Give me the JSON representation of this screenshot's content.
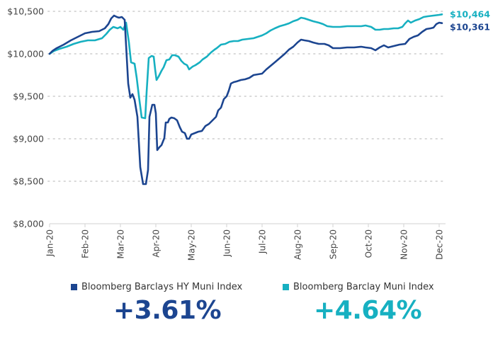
{
  "colors": {
    "hy": "#1c4590",
    "muni": "#17b0c1",
    "grid": "#d9d9d9",
    "axis": "#d9d9d9"
  },
  "chart_data": {
    "type": "line",
    "title": "",
    "xlabel": "",
    "ylabel": "",
    "ylim": [
      8000,
      10500
    ],
    "y_ticks": [
      {
        "value": 10500,
        "label": "$10,500"
      },
      {
        "value": 10000,
        "label": "$10,000"
      },
      {
        "value": 9500,
        "label": "$9,500"
      },
      {
        "value": 9000,
        "label": "$9,000"
      },
      {
        "value": 8500,
        "label": "$8,500"
      },
      {
        "value": 8000,
        "label": "$8,000"
      }
    ],
    "x_unit": "months since Jan-20",
    "xlim": [
      0,
      11.1
    ],
    "x_ticks": [
      {
        "value": 0,
        "label": "Jan-20"
      },
      {
        "value": 1,
        "label": "Feb-20"
      },
      {
        "value": 2,
        "label": "Mar-20"
      },
      {
        "value": 3,
        "label": "Apr-20"
      },
      {
        "value": 4,
        "label": "May-20"
      },
      {
        "value": 5,
        "label": "Jun-20"
      },
      {
        "value": 6,
        "label": "Jul-20"
      },
      {
        "value": 7,
        "label": "Aug-20"
      },
      {
        "value": 8,
        "label": "Sep-20"
      },
      {
        "value": 9,
        "label": "Oct-20"
      },
      {
        "value": 10,
        "label": "Nov-20"
      },
      {
        "value": 11,
        "label": "Dec-20"
      }
    ],
    "grid": "horizontal dotted",
    "legend": "bottom",
    "series": [
      {
        "name": "Bloomberg Barclays HY Muni Index",
        "key": "hy",
        "end_label": "$10,361",
        "total_return": "+3.61%",
        "points": [
          [
            0.0,
            10000
          ],
          [
            0.08,
            10033
          ],
          [
            0.2,
            10067
          ],
          [
            0.4,
            10108
          ],
          [
            0.6,
            10158
          ],
          [
            0.8,
            10200
          ],
          [
            1.0,
            10242
          ],
          [
            1.2,
            10258
          ],
          [
            1.4,
            10267
          ],
          [
            1.56,
            10300
          ],
          [
            1.66,
            10350
          ],
          [
            1.74,
            10417
          ],
          [
            1.82,
            10450
          ],
          [
            1.9,
            10433
          ],
          [
            1.96,
            10425
          ],
          [
            2.04,
            10433
          ],
          [
            2.12,
            10400
          ],
          [
            2.22,
            9650
          ],
          [
            2.28,
            9483
          ],
          [
            2.34,
            9525
          ],
          [
            2.4,
            9458
          ],
          [
            2.48,
            9258
          ],
          [
            2.56,
            8667
          ],
          [
            2.64,
            8467
          ],
          [
            2.72,
            8467
          ],
          [
            2.78,
            8633
          ],
          [
            2.82,
            9258
          ],
          [
            2.9,
            9400
          ],
          [
            2.96,
            9400
          ],
          [
            3.0,
            9300
          ],
          [
            3.04,
            8867
          ],
          [
            3.1,
            8900
          ],
          [
            3.16,
            8925
          ],
          [
            3.24,
            9008
          ],
          [
            3.28,
            9192
          ],
          [
            3.34,
            9192
          ],
          [
            3.38,
            9233
          ],
          [
            3.44,
            9250
          ],
          [
            3.52,
            9242
          ],
          [
            3.6,
            9217
          ],
          [
            3.68,
            9133
          ],
          [
            3.74,
            9083
          ],
          [
            3.82,
            9067
          ],
          [
            3.88,
            9000
          ],
          [
            3.94,
            9000
          ],
          [
            4.0,
            9050
          ],
          [
            4.1,
            9067
          ],
          [
            4.2,
            9083
          ],
          [
            4.3,
            9092
          ],
          [
            4.4,
            9150
          ],
          [
            4.5,
            9175
          ],
          [
            4.6,
            9217
          ],
          [
            4.7,
            9258
          ],
          [
            4.76,
            9333
          ],
          [
            4.84,
            9367
          ],
          [
            4.92,
            9467
          ],
          [
            5.0,
            9500
          ],
          [
            5.06,
            9567
          ],
          [
            5.12,
            9650
          ],
          [
            5.2,
            9667
          ],
          [
            5.28,
            9675
          ],
          [
            5.4,
            9692
          ],
          [
            5.52,
            9700
          ],
          [
            5.64,
            9717
          ],
          [
            5.76,
            9750
          ],
          [
            5.88,
            9758
          ],
          [
            6.0,
            9767
          ],
          [
            6.12,
            9817
          ],
          [
            6.24,
            9858
          ],
          [
            6.36,
            9900
          ],
          [
            6.5,
            9950
          ],
          [
            6.64,
            10000
          ],
          [
            6.76,
            10050
          ],
          [
            6.88,
            10083
          ],
          [
            7.0,
            10133
          ],
          [
            7.1,
            10167
          ],
          [
            7.2,
            10158
          ],
          [
            7.32,
            10150
          ],
          [
            7.44,
            10133
          ],
          [
            7.6,
            10117
          ],
          [
            7.76,
            10117
          ],
          [
            7.88,
            10100
          ],
          [
            8.0,
            10067
          ],
          [
            8.2,
            10067
          ],
          [
            8.4,
            10075
          ],
          [
            8.6,
            10075
          ],
          [
            8.8,
            10083
          ],
          [
            8.92,
            10075
          ],
          [
            9.08,
            10067
          ],
          [
            9.2,
            10042
          ],
          [
            9.32,
            10075
          ],
          [
            9.44,
            10100
          ],
          [
            9.56,
            10075
          ],
          [
            9.72,
            10092
          ],
          [
            9.88,
            10108
          ],
          [
            10.04,
            10117
          ],
          [
            10.16,
            10175
          ],
          [
            10.28,
            10200
          ],
          [
            10.4,
            10217
          ],
          [
            10.52,
            10258
          ],
          [
            10.64,
            10292
          ],
          [
            10.76,
            10300
          ],
          [
            10.84,
            10308
          ],
          [
            10.92,
            10350
          ],
          [
            11.0,
            10367
          ],
          [
            11.08,
            10361
          ]
        ]
      },
      {
        "name": "Bloomberg Barclay Muni Index",
        "key": "muni",
        "end_label": "$10,464",
        "total_return": "+4.64%",
        "points": [
          [
            0.0,
            10000
          ],
          [
            0.12,
            10033
          ],
          [
            0.28,
            10058
          ],
          [
            0.48,
            10083
          ],
          [
            0.68,
            10117
          ],
          [
            0.88,
            10142
          ],
          [
            1.08,
            10158
          ],
          [
            1.28,
            10158
          ],
          [
            1.48,
            10183
          ],
          [
            1.6,
            10233
          ],
          [
            1.7,
            10283
          ],
          [
            1.8,
            10317
          ],
          [
            1.92,
            10300
          ],
          [
            2.0,
            10317
          ],
          [
            2.08,
            10283
          ],
          [
            2.16,
            10367
          ],
          [
            2.24,
            10133
          ],
          [
            2.3,
            9900
          ],
          [
            2.4,
            9883
          ],
          [
            2.46,
            9717
          ],
          [
            2.52,
            9508
          ],
          [
            2.6,
            9250
          ],
          [
            2.7,
            9242
          ],
          [
            2.74,
            9550
          ],
          [
            2.8,
            9950
          ],
          [
            2.88,
            9975
          ],
          [
            2.94,
            9967
          ],
          [
            2.98,
            9817
          ],
          [
            3.02,
            9692
          ],
          [
            3.08,
            9733
          ],
          [
            3.16,
            9800
          ],
          [
            3.22,
            9842
          ],
          [
            3.3,
            9925
          ],
          [
            3.38,
            9933
          ],
          [
            3.46,
            9983
          ],
          [
            3.54,
            9983
          ],
          [
            3.64,
            9967
          ],
          [
            3.72,
            9917
          ],
          [
            3.8,
            9883
          ],
          [
            3.88,
            9867
          ],
          [
            3.94,
            9817
          ],
          [
            4.04,
            9850
          ],
          [
            4.12,
            9867
          ],
          [
            4.24,
            9900
          ],
          [
            4.32,
            9933
          ],
          [
            4.44,
            9967
          ],
          [
            4.56,
            10017
          ],
          [
            4.66,
            10050
          ],
          [
            4.72,
            10067
          ],
          [
            4.84,
            10108
          ],
          [
            4.96,
            10117
          ],
          [
            5.08,
            10142
          ],
          [
            5.2,
            10150
          ],
          [
            5.32,
            10150
          ],
          [
            5.44,
            10167
          ],
          [
            5.6,
            10175
          ],
          [
            5.76,
            10183
          ],
          [
            5.88,
            10200
          ],
          [
            6.0,
            10217
          ],
          [
            6.12,
            10242
          ],
          [
            6.24,
            10275
          ],
          [
            6.36,
            10300
          ],
          [
            6.5,
            10325
          ],
          [
            6.64,
            10342
          ],
          [
            6.76,
            10358
          ],
          [
            6.88,
            10383
          ],
          [
            7.0,
            10400
          ],
          [
            7.1,
            10425
          ],
          [
            7.2,
            10417
          ],
          [
            7.32,
            10400
          ],
          [
            7.44,
            10383
          ],
          [
            7.6,
            10367
          ],
          [
            7.72,
            10350
          ],
          [
            7.84,
            10325
          ],
          [
            8.0,
            10317
          ],
          [
            8.2,
            10317
          ],
          [
            8.4,
            10325
          ],
          [
            8.6,
            10325
          ],
          [
            8.8,
            10325
          ],
          [
            8.92,
            10333
          ],
          [
            9.08,
            10317
          ],
          [
            9.2,
            10283
          ],
          [
            9.32,
            10283
          ],
          [
            9.44,
            10292
          ],
          [
            9.56,
            10292
          ],
          [
            9.72,
            10300
          ],
          [
            9.84,
            10300
          ],
          [
            9.96,
            10317
          ],
          [
            10.04,
            10358
          ],
          [
            10.12,
            10392
          ],
          [
            10.2,
            10367
          ],
          [
            10.32,
            10392
          ],
          [
            10.44,
            10408
          ],
          [
            10.56,
            10433
          ],
          [
            10.68,
            10442
          ],
          [
            10.84,
            10450
          ],
          [
            11.0,
            10458
          ],
          [
            11.08,
            10464
          ]
        ]
      }
    ]
  },
  "legend": {
    "hy_label": "Bloomberg Barclays HY Muni Index",
    "muni_label": "Bloomberg Barclay Muni Index"
  },
  "returns": {
    "hy": "+3.61%",
    "muni": "+4.64%"
  }
}
